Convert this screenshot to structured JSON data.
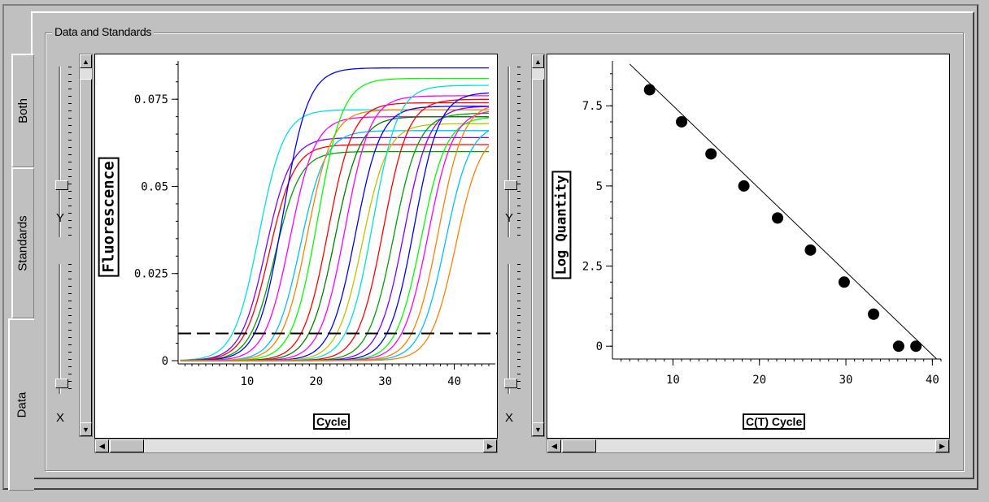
{
  "group_title": "Data and Standards",
  "tabs": [
    "Both",
    "Standards",
    "Data"
  ],
  "sliders": {
    "y_label": "Y",
    "x_label": "X"
  },
  "left_chart": {
    "ylabel": "Fluorescence",
    "xlabel": "Cycle",
    "yticks": [
      "0",
      "0.025",
      "0.05",
      "0.075"
    ],
    "xticks": [
      "10",
      "20",
      "30",
      "40"
    ],
    "threshold": 0.0078,
    "xlim": [
      0,
      45
    ],
    "ylim": [
      0,
      0.086
    ],
    "curves": [
      {
        "color": "#00e0e0",
        "ct": 7.5,
        "max": 0.072
      },
      {
        "color": "#8000ff",
        "ct": 8.5,
        "max": 0.064
      },
      {
        "color": "#ff0000",
        "ct": 9.0,
        "max": 0.062
      },
      {
        "color": "#00a000",
        "ct": 9.8,
        "max": 0.06
      },
      {
        "color": "#0000ff",
        "ct": 11.0,
        "max": 0.084
      },
      {
        "color": "#ff00ff",
        "ct": 12.0,
        "max": 0.07
      },
      {
        "color": "#00c0ff",
        "ct": 13.5,
        "max": 0.066
      },
      {
        "color": "#ff8000",
        "ct": 14.5,
        "max": 0.072
      },
      {
        "color": "#00ff00",
        "ct": 16.0,
        "max": 0.081
      },
      {
        "color": "#ff0000",
        "ct": 17.5,
        "max": 0.074
      },
      {
        "color": "#008000",
        "ct": 18.5,
        "max": 0.07
      },
      {
        "color": "#ff00ff",
        "ct": 20.0,
        "max": 0.076
      },
      {
        "color": "#0000ff",
        "ct": 21.5,
        "max": 0.073
      },
      {
        "color": "#c0c000",
        "ct": 22.5,
        "max": 0.068
      },
      {
        "color": "#00e0e0",
        "ct": 24.0,
        "max": 0.079
      },
      {
        "color": "#ff0000",
        "ct": 25.5,
        "max": 0.075
      },
      {
        "color": "#00a000",
        "ct": 27.0,
        "max": 0.071
      },
      {
        "color": "#8000ff",
        "ct": 28.5,
        "max": 0.073
      },
      {
        "color": "#0000ff",
        "ct": 30.0,
        "max": 0.077
      },
      {
        "color": "#00ff00",
        "ct": 31.0,
        "max": 0.07
      },
      {
        "color": "#ff00ff",
        "ct": 32.0,
        "max": 0.072
      },
      {
        "color": "#ff8000",
        "ct": 33.5,
        "max": 0.074
      },
      {
        "color": "#00c0ff",
        "ct": 34.5,
        "max": 0.068
      },
      {
        "color": "#ff8000",
        "ct": 36.0,
        "max": 0.066
      }
    ]
  },
  "right_chart": {
    "ylabel": "Log Quantity",
    "xlabel": "C(T) Cycle",
    "yticks": [
      "0",
      "2.5",
      "5",
      "7.5"
    ],
    "xticks": [
      "10",
      "20",
      "30",
      "40"
    ],
    "xlim": [
      3,
      41
    ],
    "ylim": [
      -0.4,
      8.9
    ],
    "points": [
      [
        7.3,
        8
      ],
      [
        11,
        7
      ],
      [
        14.4,
        6
      ],
      [
        18.2,
        5
      ],
      [
        22.1,
        4
      ],
      [
        25.9,
        3
      ],
      [
        29.8,
        2
      ],
      [
        33.2,
        1
      ],
      [
        36.1,
        0
      ],
      [
        38.1,
        0
      ]
    ],
    "fit_line": [
      [
        5,
        8.8
      ],
      [
        40.5,
        -0.4
      ]
    ]
  },
  "colors": {
    "face": "#c0c0c0",
    "plot_bg": "#ffffff"
  }
}
